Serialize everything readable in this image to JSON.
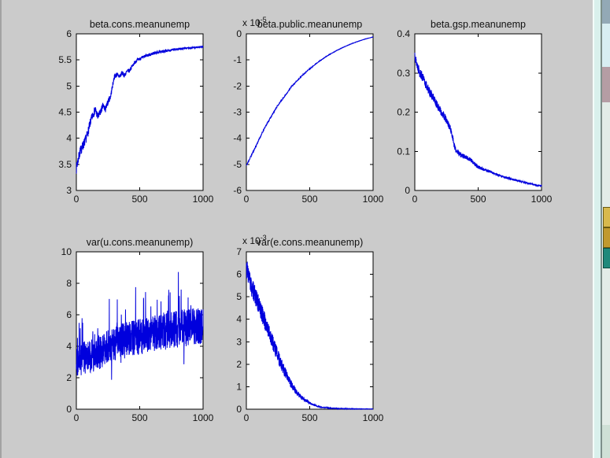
{
  "window": {
    "background": "#cbcbcb",
    "left_border_color": "#a2a2a2",
    "axis_color": "#000000"
  },
  "desktop": {
    "edge_highlight_color": "#f4fcfa",
    "cyan_strip_color": "#d9f0ec",
    "divider_color": "#7e8f8a",
    "column_color": "#e3ece7",
    "slate_block_color": "#93a9b6",
    "cyan_block_color": "#d8eef2",
    "pink_block_color": "#b59da4",
    "bottom_block_color": "#cfe0d6",
    "icons": [
      {
        "name": "desktop-icon-folder-1",
        "color": "#d8b94c"
      },
      {
        "name": "desktop-icon-folder-2",
        "color": "#c0992e"
      },
      {
        "name": "desktop-icon-teal",
        "color": "#20897b"
      }
    ]
  },
  "chart_data": [
    {
      "type": "line",
      "title": "beta.cons.meanunemp",
      "line_color": "#0000dd",
      "seed": 7,
      "samples": 1000,
      "x": {
        "min": 0,
        "max": 1000,
        "ticks": [
          0,
          500,
          1000
        ],
        "tick_labels": [
          "0",
          "500",
          "1000"
        ]
      },
      "y": {
        "min": 3,
        "max": 6,
        "ticks": [
          3,
          3.5,
          4,
          4.5,
          5,
          5.5,
          6
        ],
        "tick_labels": [
          "3",
          "3.5",
          "4",
          "4.5",
          "5",
          "5.5",
          "6"
        ]
      },
      "trend": [
        [
          0,
          3.42
        ],
        [
          15,
          3.6
        ],
        [
          30,
          3.75
        ],
        [
          50,
          3.85
        ],
        [
          70,
          3.95
        ],
        [
          90,
          4.1
        ],
        [
          110,
          4.3
        ],
        [
          130,
          4.45
        ],
        [
          150,
          4.55
        ],
        [
          170,
          4.4
        ],
        [
          190,
          4.5
        ],
        [
          210,
          4.62
        ],
        [
          230,
          4.55
        ],
        [
          250,
          4.7
        ],
        [
          270,
          4.8
        ],
        [
          285,
          5.0
        ],
        [
          300,
          5.18
        ],
        [
          320,
          5.22
        ],
        [
          340,
          5.18
        ],
        [
          360,
          5.25
        ],
        [
          380,
          5.2
        ],
        [
          400,
          5.28
        ],
        [
          420,
          5.3
        ],
        [
          440,
          5.38
        ],
        [
          460,
          5.45
        ],
        [
          480,
          5.5
        ],
        [
          500,
          5.52
        ],
        [
          550,
          5.58
        ],
        [
          600,
          5.62
        ],
        [
          650,
          5.65
        ],
        [
          700,
          5.67
        ],
        [
          750,
          5.69
        ],
        [
          800,
          5.71
        ],
        [
          850,
          5.72
        ],
        [
          900,
          5.73
        ],
        [
          950,
          5.74
        ],
        [
          1000,
          5.75
        ]
      ],
      "noise": [
        [
          0,
          0.1
        ],
        [
          150,
          0.08
        ],
        [
          300,
          0.05
        ],
        [
          500,
          0.03
        ],
        [
          1000,
          0.015
        ]
      ]
    },
    {
      "type": "line",
      "title": "beta.public.meanunemp",
      "exponent": {
        "base": "x 10",
        "power": "-5"
      },
      "line_color": "#0000dd",
      "seed": 11,
      "samples": 800,
      "x": {
        "min": 0,
        "max": 1000,
        "ticks": [
          0,
          500,
          1000
        ],
        "tick_labels": [
          "0",
          "500",
          "1000"
        ]
      },
      "y": {
        "min": -6,
        "max": 0,
        "ticks": [
          -6,
          -5,
          -4,
          -3,
          -2,
          -1,
          0
        ],
        "tick_labels": [
          "-6",
          "-5",
          "-4",
          "-3",
          "-2",
          "-1",
          "0"
        ]
      },
      "trend": [
        [
          0,
          -5.05
        ],
        [
          30,
          -4.75
        ],
        [
          60,
          -4.45
        ],
        [
          90,
          -4.15
        ],
        [
          120,
          -3.85
        ],
        [
          150,
          -3.55
        ],
        [
          180,
          -3.3
        ],
        [
          210,
          -3.05
        ],
        [
          240,
          -2.8
        ],
        [
          270,
          -2.6
        ],
        [
          300,
          -2.4
        ],
        [
          330,
          -2.2
        ],
        [
          360,
          -2.0
        ],
        [
          390,
          -1.85
        ],
        [
          420,
          -1.7
        ],
        [
          450,
          -1.55
        ],
        [
          480,
          -1.42
        ],
        [
          510,
          -1.3
        ],
        [
          540,
          -1.18
        ],
        [
          570,
          -1.07
        ],
        [
          600,
          -0.97
        ],
        [
          630,
          -0.87
        ],
        [
          660,
          -0.78
        ],
        [
          690,
          -0.7
        ],
        [
          720,
          -0.62
        ],
        [
          750,
          -0.55
        ],
        [
          780,
          -0.48
        ],
        [
          810,
          -0.42
        ],
        [
          840,
          -0.36
        ],
        [
          870,
          -0.31
        ],
        [
          900,
          -0.26
        ],
        [
          930,
          -0.21
        ],
        [
          960,
          -0.17
        ],
        [
          1000,
          -0.12
        ]
      ],
      "noise": [
        [
          0,
          0.05
        ],
        [
          100,
          0.04
        ],
        [
          300,
          0.025
        ],
        [
          600,
          0.012
        ],
        [
          1000,
          0.006
        ]
      ]
    },
    {
      "type": "line",
      "title": "beta.gsp.meanunemp",
      "line_color": "#0000dd",
      "seed": 13,
      "samples": 1000,
      "x": {
        "min": 0,
        "max": 1000,
        "ticks": [
          0,
          500,
          1000
        ],
        "tick_labels": [
          "0",
          "500",
          "1000"
        ]
      },
      "y": {
        "min": 0,
        "max": 0.4,
        "ticks": [
          0,
          0.1,
          0.2,
          0.3,
          0.4
        ],
        "tick_labels": [
          "0",
          "0.1",
          "0.2",
          "0.3",
          "0.4"
        ]
      },
      "trend": [
        [
          0,
          0.35
        ],
        [
          10,
          0.33
        ],
        [
          25,
          0.315
        ],
        [
          40,
          0.3
        ],
        [
          60,
          0.29
        ],
        [
          80,
          0.275
        ],
        [
          100,
          0.262
        ],
        [
          120,
          0.25
        ],
        [
          140,
          0.24
        ],
        [
          160,
          0.228
        ],
        [
          180,
          0.215
        ],
        [
          200,
          0.205
        ],
        [
          220,
          0.195
        ],
        [
          240,
          0.185
        ],
        [
          260,
          0.172
        ],
        [
          280,
          0.158
        ],
        [
          300,
          0.135
        ],
        [
          310,
          0.115
        ],
        [
          320,
          0.105
        ],
        [
          340,
          0.098
        ],
        [
          360,
          0.092
        ],
        [
          380,
          0.088
        ],
        [
          400,
          0.085
        ],
        [
          420,
          0.082
        ],
        [
          440,
          0.078
        ],
        [
          460,
          0.072
        ],
        [
          480,
          0.066
        ],
        [
          500,
          0.06
        ],
        [
          540,
          0.054
        ],
        [
          580,
          0.05
        ],
        [
          600,
          0.047
        ],
        [
          650,
          0.04
        ],
        [
          700,
          0.035
        ],
        [
          750,
          0.03
        ],
        [
          800,
          0.026
        ],
        [
          850,
          0.022
        ],
        [
          900,
          0.018
        ],
        [
          950,
          0.014
        ],
        [
          1000,
          0.012
        ]
      ],
      "noise": [
        [
          0,
          0.013
        ],
        [
          200,
          0.01
        ],
        [
          400,
          0.006
        ],
        [
          600,
          0.003
        ],
        [
          1000,
          0.002
        ]
      ]
    },
    {
      "type": "line",
      "title": "var(u.cons.meanunemp)",
      "line_color": "#0000dd",
      "seed": 21,
      "samples": 1000,
      "x": {
        "min": 0,
        "max": 1000,
        "ticks": [
          0,
          500,
          1000
        ],
        "tick_labels": [
          "0",
          "500",
          "1000"
        ]
      },
      "y": {
        "min": 0,
        "max": 10,
        "ticks": [
          0,
          2,
          4,
          6,
          8,
          10
        ],
        "tick_labels": [
          "0",
          "2",
          "4",
          "6",
          "8",
          "10"
        ]
      },
      "trend": [
        [
          0,
          3.0
        ],
        [
          100,
          3.4
        ],
        [
          200,
          3.7
        ],
        [
          300,
          4.2
        ],
        [
          400,
          4.4
        ],
        [
          500,
          4.6
        ],
        [
          600,
          4.8
        ],
        [
          700,
          5.0
        ],
        [
          800,
          5.1
        ],
        [
          900,
          5.2
        ],
        [
          1000,
          5.3
        ]
      ],
      "noise": [
        [
          0,
          1.1
        ],
        [
          1000,
          1.2
        ]
      ],
      "spike": {
        "prob": 0.06,
        "amp": 3.4,
        "up_bias": 0.78
      }
    },
    {
      "type": "line",
      "title": "var(e.cons.meanunemp)",
      "exponent": {
        "base": "x 10",
        "power": "-3"
      },
      "line_color": "#0000dd",
      "seed": 33,
      "samples": 1200,
      "x": {
        "min": 0,
        "max": 1000,
        "ticks": [
          0,
          500,
          1000
        ],
        "tick_labels": [
          "0",
          "500",
          "1000"
        ]
      },
      "y": {
        "min": 0,
        "max": 7,
        "ticks": [
          0,
          1,
          2,
          3,
          4,
          5,
          6,
          7
        ],
        "tick_labels": [
          "0",
          "1",
          "2",
          "3",
          "4",
          "5",
          "6",
          "7"
        ]
      },
      "trend": [
        [
          0,
          6.3
        ],
        [
          20,
          5.9
        ],
        [
          40,
          5.4
        ],
        [
          60,
          5.2
        ],
        [
          80,
          4.9
        ],
        [
          100,
          4.6
        ],
        [
          120,
          4.3
        ],
        [
          140,
          4.0
        ],
        [
          160,
          3.7
        ],
        [
          180,
          3.4
        ],
        [
          200,
          3.1
        ],
        [
          220,
          2.8
        ],
        [
          240,
          2.5
        ],
        [
          260,
          2.2
        ],
        [
          280,
          1.95
        ],
        [
          300,
          1.7
        ],
        [
          320,
          1.45
        ],
        [
          340,
          1.25
        ],
        [
          360,
          1.05
        ],
        [
          380,
          0.88
        ],
        [
          400,
          0.72
        ],
        [
          420,
          0.6
        ],
        [
          440,
          0.5
        ],
        [
          460,
          0.42
        ],
        [
          480,
          0.35
        ],
        [
          500,
          0.28
        ],
        [
          520,
          0.22
        ],
        [
          540,
          0.17
        ],
        [
          560,
          0.13
        ],
        [
          580,
          0.1
        ],
        [
          600,
          0.08
        ],
        [
          650,
          0.05
        ],
        [
          700,
          0.035
        ],
        [
          750,
          0.025
        ],
        [
          800,
          0.02
        ],
        [
          850,
          0.015
        ],
        [
          900,
          0.012
        ],
        [
          1000,
          0.01
        ]
      ],
      "noise": [
        [
          0,
          0.45
        ],
        [
          100,
          0.4
        ],
        [
          200,
          0.35
        ],
        [
          300,
          0.25
        ],
        [
          400,
          0.12
        ],
        [
          500,
          0.05
        ],
        [
          600,
          0.015
        ],
        [
          1000,
          0.004
        ]
      ]
    }
  ]
}
